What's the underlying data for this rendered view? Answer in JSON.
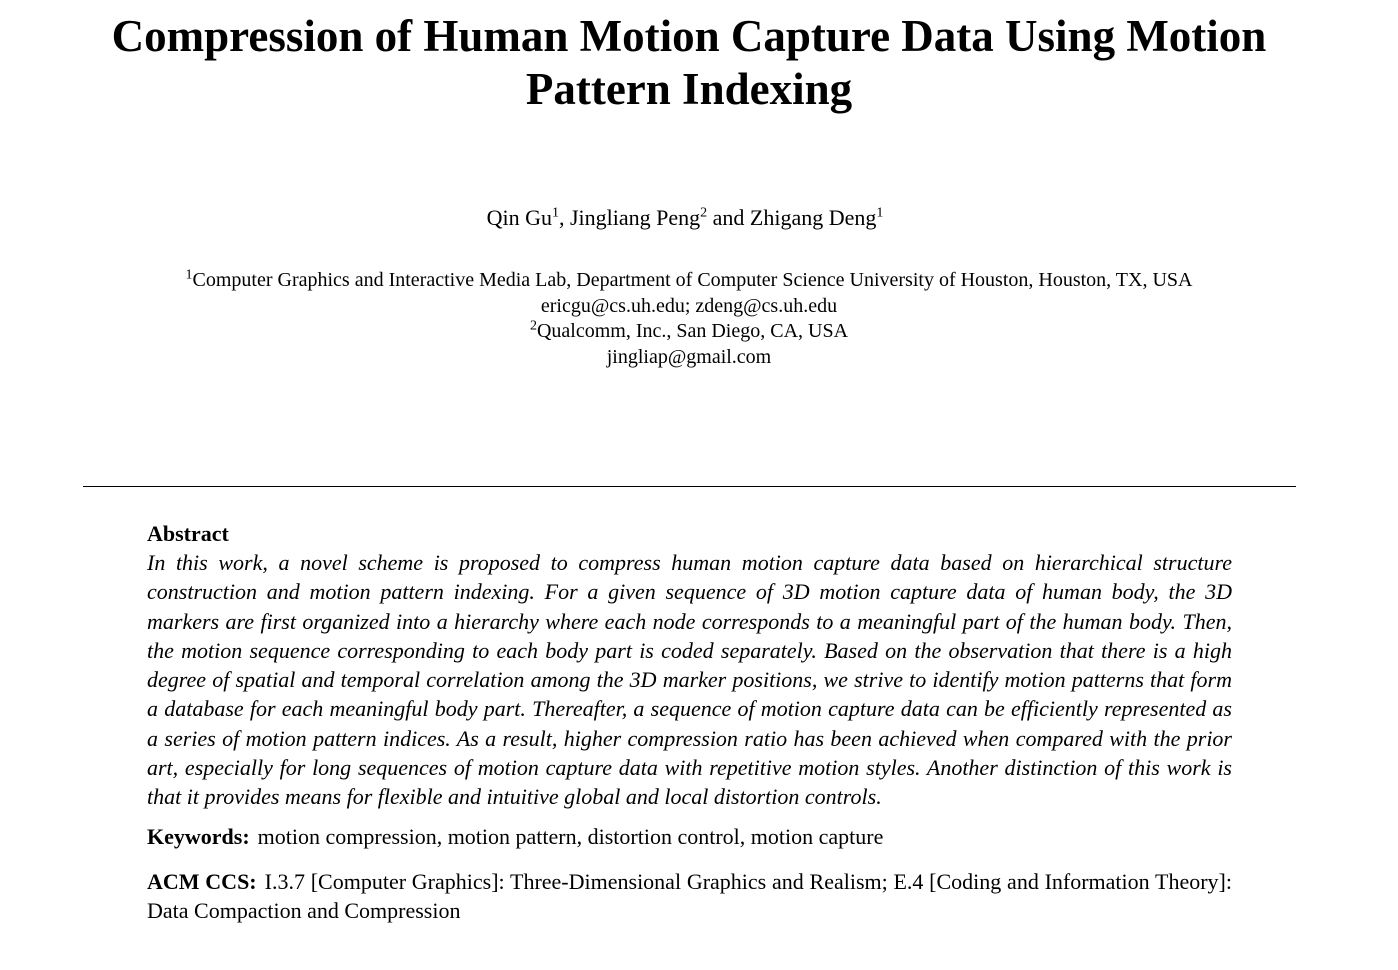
{
  "paper": {
    "title": "Compression of Human Motion Capture Data Using Motion Pattern Indexing",
    "authors": [
      {
        "name": "Qin Gu",
        "affiliation_mark": "1"
      },
      {
        "name": "Jingliang Peng",
        "affiliation_mark": "2"
      },
      {
        "name": "Zhigang Deng",
        "affiliation_mark": "1"
      }
    ],
    "author_separators": [
      ", ",
      " and "
    ],
    "affiliations": [
      {
        "mark": "1",
        "text": "Computer Graphics and Interactive Media Lab, Department of Computer Science University of Houston, Houston, TX, USA",
        "email": "ericgu@cs.uh.edu; zdeng@cs.uh.edu"
      },
      {
        "mark": "2",
        "text": "Qualcomm, Inc., San Diego, CA, USA",
        "email": "jingliap@gmail.com"
      }
    ],
    "abstract": {
      "heading": "Abstract",
      "text": "In this work, a novel scheme is proposed to compress human motion capture data based on hierarchical structure construction and motion pattern indexing. For a given sequence of 3D motion capture data of human body, the 3D markers are first organized into a hierarchy where each node corresponds to a meaningful part of the human body. Then, the motion sequence corresponding to each body part is coded separately. Based on the observation that there is a high degree of spatial and temporal correlation among the 3D marker positions, we strive to identify motion patterns that form a database for each meaningful body part. Thereafter, a sequence of motion capture data can be efficiently represented as a series of motion pattern indices. As a result, higher compression ratio has been achieved when compared with the prior art, especially for long sequences of motion capture data with repetitive motion styles. Another distinction of this work is that it provides means for flexible and intuitive global and local distortion controls."
    },
    "keywords": {
      "label": "Keywords:",
      "text": "motion compression, motion pattern, distortion control, motion capture"
    },
    "acm_ccs": {
      "label": "ACM CCS:",
      "text": "I.3.7 [Computer Graphics]: Three-Dimensional Graphics and Realism; E.4 [Coding and Information Theory]: Data Compaction and Compression"
    }
  }
}
